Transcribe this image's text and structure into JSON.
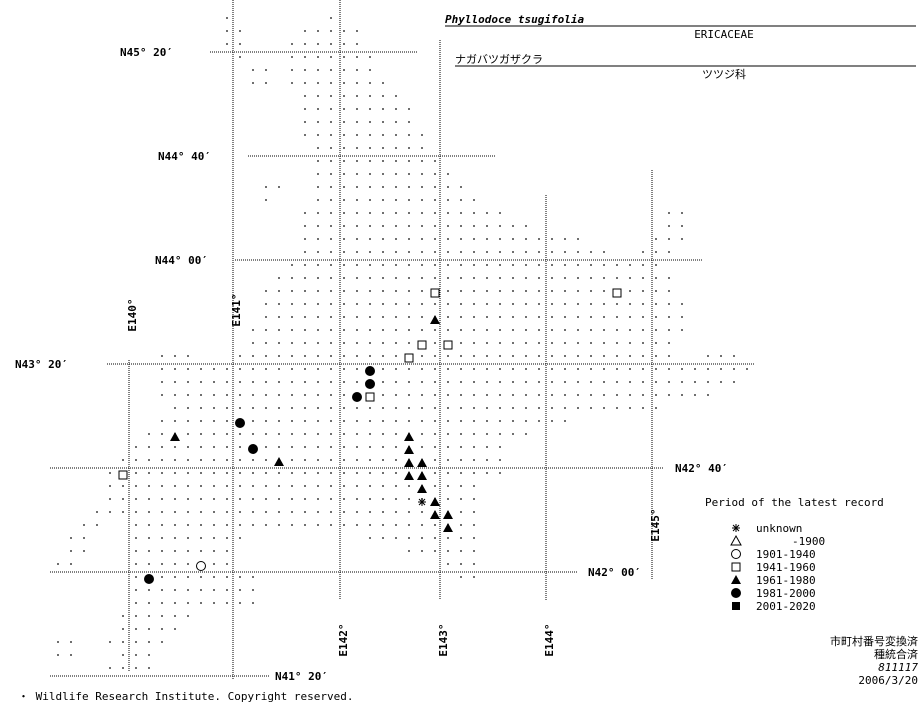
{
  "header": {
    "scientific_name": "Phyllodoce tsugifolia",
    "family": "ERICACEAE",
    "japanese_name": "ナガバツガザクラ",
    "japanese_family": "ツツジ科"
  },
  "map": {
    "parallels": [
      "N45° 20′",
      "N44° 40′",
      "N44° 00′",
      "N43° 20′",
      "N42° 40′",
      "N42° 00′",
      "N41° 20′"
    ],
    "meridians": [
      "E140°",
      "E141°",
      "E142°",
      "E143°",
      "E144°",
      "E145°"
    ]
  },
  "legend": {
    "title": "Period of the latest record",
    "items": [
      "unknown",
      "-1900",
      "1901-1940",
      "1941-1960",
      "1961-1980",
      "1981-2000",
      "2001-2020"
    ]
  },
  "notes": [
    "市町村番号変換済",
    "種統合済",
    "811117",
    "2006/3/20"
  ],
  "footer": "・ Wildlife Research Institute. Copyright reserved."
}
